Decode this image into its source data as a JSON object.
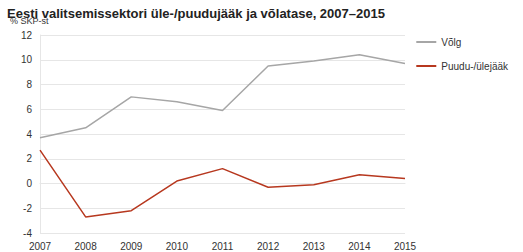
{
  "chart_data": {
    "type": "line",
    "title": "Eesti valitsemissektori üle-/puudujääk ja võlatase, 2007–2015",
    "y_label": "% SKP-st",
    "categories": [
      "2007",
      "2008",
      "2009",
      "2010",
      "2011",
      "2012",
      "2013",
      "2014",
      "2015"
    ],
    "series": [
      {
        "name": "Võlg",
        "color": "#a6a6a6",
        "values": [
          3.7,
          4.5,
          7.0,
          6.6,
          5.9,
          9.5,
          9.9,
          10.4,
          9.7
        ]
      },
      {
        "name": "Puudu-/ülejääk",
        "color": "#b7381f",
        "values": [
          2.7,
          -2.7,
          -2.2,
          0.2,
          1.2,
          -0.3,
          -0.1,
          0.7,
          0.4
        ]
      }
    ],
    "ylim": [
      -4,
      12
    ],
    "yticks": [
      -4,
      -2,
      0,
      2,
      4,
      6,
      8,
      10,
      12
    ],
    "grid": true,
    "legend": "right"
  }
}
